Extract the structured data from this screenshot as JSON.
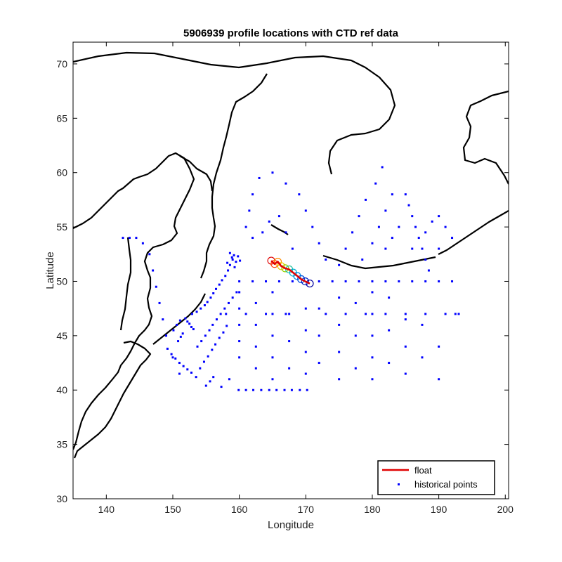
{
  "chart_data": {
    "type": "scatter",
    "title": "5906939 profile locations with CTD ref data",
    "xlabel": "Longitude",
    "ylabel": "Latitude",
    "xlim": [
      135,
      200.5
    ],
    "ylim": [
      30,
      72
    ],
    "xticks": [
      140,
      150,
      160,
      170,
      180,
      190,
      200
    ],
    "yticks": [
      30,
      35,
      40,
      45,
      50,
      55,
      60,
      65,
      70
    ],
    "grid": false,
    "legend_position": "bottom-right",
    "legend": [
      {
        "label": "float",
        "color": "#e00000",
        "marker": "line"
      },
      {
        "label": "historical points",
        "color": "#0000ff",
        "marker": "dot"
      }
    ],
    "colors": {
      "coastline": "#000000",
      "historical": "#0000ff",
      "float_track": "#e00000"
    },
    "float_track": [
      [
        164.8,
        51.9
      ],
      [
        165.3,
        51.6
      ],
      [
        165.8,
        51.8
      ],
      [
        166.3,
        51.4
      ],
      [
        166.9,
        51.2
      ],
      [
        167.5,
        51.1
      ],
      [
        168.1,
        50.8
      ],
      [
        168.7,
        50.5
      ],
      [
        169.3,
        50.2
      ],
      [
        169.9,
        50.0
      ],
      [
        170.6,
        49.8
      ]
    ],
    "historical_points": [
      [
        152.2,
        46.3
      ],
      [
        152.5,
        46.1
      ],
      [
        151.9,
        46.6
      ],
      [
        152.8,
        45.8
      ],
      [
        153.1,
        45.6
      ],
      [
        151.5,
        45.2
      ],
      [
        150.8,
        44.5
      ],
      [
        151.2,
        44.9
      ],
      [
        152.9,
        47.0
      ],
      [
        153.6,
        47.2
      ],
      [
        154.2,
        47.5
      ],
      [
        154.8,
        47.8
      ],
      [
        155.2,
        48.1
      ],
      [
        155.7,
        48.5
      ],
      [
        156.1,
        48.9
      ],
      [
        156.5,
        49.3
      ],
      [
        157.0,
        49.7
      ],
      [
        157.4,
        50.1
      ],
      [
        157.9,
        50.5
      ],
      [
        158.3,
        51.0
      ],
      [
        158.6,
        51.5
      ],
      [
        159.0,
        52.0
      ],
      [
        159.2,
        52.4
      ],
      [
        158.9,
        52.2
      ],
      [
        159.5,
        51.8
      ],
      [
        159.8,
        52.3
      ],
      [
        158.6,
        52.6
      ],
      [
        159.3,
        51.3
      ],
      [
        160.1,
        51.9
      ],
      [
        158.2,
        51.7
      ],
      [
        149.2,
        43.8
      ],
      [
        149.8,
        43.3
      ],
      [
        150.4,
        42.9
      ],
      [
        151.0,
        42.5
      ],
      [
        151.6,
        42.2
      ],
      [
        152.2,
        41.9
      ],
      [
        152.8,
        41.6
      ],
      [
        153.5,
        41.2
      ],
      [
        154.1,
        42.0
      ],
      [
        154.7,
        42.6
      ],
      [
        155.3,
        43.1
      ],
      [
        155.9,
        43.7
      ],
      [
        156.4,
        44.2
      ],
      [
        157.0,
        44.8
      ],
      [
        157.6,
        45.3
      ],
      [
        158.1,
        45.9
      ],
      [
        150.1,
        45.5
      ],
      [
        150.6,
        46.0
      ],
      [
        151.1,
        46.4
      ],
      [
        153.7,
        44.0
      ],
      [
        154.3,
        44.5
      ],
      [
        154.9,
        45.0
      ],
      [
        155.5,
        45.5
      ],
      [
        156.0,
        46.0
      ],
      [
        156.6,
        46.5
      ],
      [
        157.2,
        47.0
      ],
      [
        157.8,
        47.5
      ],
      [
        158.4,
        48.0
      ],
      [
        159.0,
        48.5
      ],
      [
        159.6,
        49.0
      ],
      [
        155.0,
        40.4
      ],
      [
        155.6,
        40.8
      ],
      [
        156.1,
        41.2
      ],
      [
        157.3,
        40.3
      ],
      [
        158.5,
        41.0
      ],
      [
        159.9,
        40.0
      ],
      [
        161.0,
        40.0
      ],
      [
        162.1,
        40.0
      ],
      [
        163.3,
        40.0
      ],
      [
        164.5,
        40.0
      ],
      [
        165.6,
        40.0
      ],
      [
        166.8,
        40.0
      ],
      [
        167.9,
        40.0
      ],
      [
        169.1,
        40.0
      ],
      [
        170.2,
        40.0
      ],
      [
        160.0,
        43.0
      ],
      [
        160.0,
        44.5
      ],
      [
        160.0,
        46.0
      ],
      [
        160.0,
        47.5
      ],
      [
        160.0,
        49.0
      ],
      [
        162.5,
        42.0
      ],
      [
        162.5,
        44.0
      ],
      [
        162.5,
        46.0
      ],
      [
        162.5,
        48.0
      ],
      [
        165.0,
        41.0
      ],
      [
        165.0,
        43.0
      ],
      [
        165.0,
        45.0
      ],
      [
        165.0,
        47.0
      ],
      [
        165.0,
        49.0
      ],
      [
        167.5,
        42.0
      ],
      [
        167.5,
        44.5
      ],
      [
        167.5,
        47.0
      ],
      [
        170.0,
        41.5
      ],
      [
        170.0,
        43.5
      ],
      [
        170.0,
        45.5
      ],
      [
        170.0,
        47.5
      ],
      [
        172.0,
        42.5
      ],
      [
        172.0,
        45.0
      ],
      [
        172.0,
        47.5
      ],
      [
        175.0,
        41.0
      ],
      [
        175.0,
        43.5
      ],
      [
        175.0,
        46.0
      ],
      [
        175.0,
        48.5
      ],
      [
        177.5,
        42.0
      ],
      [
        177.5,
        45.0
      ],
      [
        177.5,
        48.0
      ],
      [
        180.0,
        41.0
      ],
      [
        180.0,
        43.0
      ],
      [
        180.0,
        45.0
      ],
      [
        180.0,
        47.0
      ],
      [
        180.0,
        49.0
      ],
      [
        182.5,
        42.5
      ],
      [
        182.5,
        45.5
      ],
      [
        182.5,
        48.5
      ],
      [
        185.0,
        41.5
      ],
      [
        185.0,
        44.0
      ],
      [
        185.0,
        46.5
      ],
      [
        187.5,
        43.0
      ],
      [
        187.5,
        46.0
      ],
      [
        190.0,
        41.0
      ],
      [
        190.0,
        44.0
      ],
      [
        192.5,
        47.0
      ],
      [
        160.0,
        50.0
      ],
      [
        162.0,
        50.0
      ],
      [
        164.0,
        50.0
      ],
      [
        166.0,
        50.0
      ],
      [
        168.0,
        50.0
      ],
      [
        172.0,
        50.0
      ],
      [
        174.0,
        50.0
      ],
      [
        176.0,
        50.0
      ],
      [
        178.0,
        50.0
      ],
      [
        180.0,
        50.0
      ],
      [
        182.0,
        50.0
      ],
      [
        184.0,
        50.0
      ],
      [
        186.0,
        50.0
      ],
      [
        188.0,
        50.0
      ],
      [
        190.0,
        50.0
      ],
      [
        192.0,
        50.0
      ],
      [
        158.0,
        47.0
      ],
      [
        161.0,
        47.0
      ],
      [
        164.0,
        47.0
      ],
      [
        167.0,
        47.0
      ],
      [
        173.0,
        47.0
      ],
      [
        176.0,
        47.0
      ],
      [
        179.0,
        47.0
      ],
      [
        182.0,
        47.0
      ],
      [
        185.0,
        47.0
      ],
      [
        188.0,
        47.0
      ],
      [
        191.0,
        47.0
      ],
      [
        193.0,
        47.0
      ],
      [
        175.0,
        51.5
      ],
      [
        176.0,
        53.0
      ],
      [
        177.0,
        54.5
      ],
      [
        178.0,
        56.0
      ],
      [
        179.0,
        57.5
      ],
      [
        180.5,
        59.0
      ],
      [
        181.5,
        60.5
      ],
      [
        178.5,
        52.0
      ],
      [
        180.0,
        53.5
      ],
      [
        181.0,
        55.0
      ],
      [
        182.0,
        56.5
      ],
      [
        183.0,
        58.0
      ],
      [
        173.0,
        52.0
      ],
      [
        172.0,
        53.5
      ],
      [
        171.0,
        55.0
      ],
      [
        170.0,
        56.5
      ],
      [
        169.0,
        58.0
      ],
      [
        167.0,
        59.0
      ],
      [
        165.0,
        60.0
      ],
      [
        163.0,
        59.5
      ],
      [
        162.0,
        58.0
      ],
      [
        161.5,
        56.5
      ],
      [
        161.0,
        55.0
      ],
      [
        162.0,
        54.0
      ],
      [
        163.5,
        54.5
      ],
      [
        164.5,
        55.5
      ],
      [
        166.0,
        56.0
      ],
      [
        167.0,
        54.5
      ],
      [
        168.0,
        53.0
      ],
      [
        185.0,
        58.0
      ],
      [
        185.5,
        57.0
      ],
      [
        186.0,
        56.0
      ],
      [
        186.5,
        55.0
      ],
      [
        187.0,
        54.0
      ],
      [
        187.5,
        53.0
      ],
      [
        188.0,
        52.0
      ],
      [
        188.5,
        51.0
      ],
      [
        189.0,
        55.5
      ],
      [
        190.0,
        56.0
      ],
      [
        191.0,
        55.0
      ],
      [
        192.0,
        54.0
      ],
      [
        184.0,
        55.0
      ],
      [
        183.0,
        54.0
      ],
      [
        182.0,
        53.0
      ],
      [
        186.0,
        53.0
      ],
      [
        188.0,
        54.5
      ],
      [
        190.0,
        53.0
      ],
      [
        144.5,
        54.0
      ],
      [
        145.5,
        53.5
      ],
      [
        146.5,
        52.5
      ],
      [
        147.0,
        51.0
      ],
      [
        147.5,
        49.5
      ],
      [
        148.0,
        48.0
      ],
      [
        148.5,
        46.5
      ],
      [
        149.0,
        45.0
      ],
      [
        143.5,
        54.0
      ],
      [
        142.5,
        54.0
      ],
      [
        150.0,
        43.0
      ],
      [
        151.0,
        41.5
      ]
    ]
  }
}
